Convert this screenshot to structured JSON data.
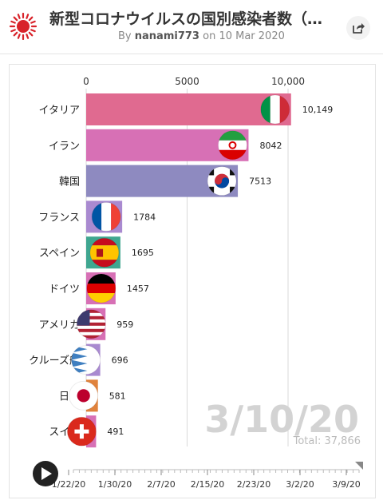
{
  "header": {
    "title": "新型コロナウイルスの国別感染者数（中…",
    "byline_prefix": "By",
    "author": "nanami773",
    "byline_on": "on",
    "date": "10 Mar 2020"
  },
  "icons": {
    "logo": "red-sun-logo-icon",
    "share": "share-icon",
    "play": "play-icon"
  },
  "colors": {
    "accent_red": "#d8232a",
    "italy_bar": "#e06a90",
    "iran_bar": "#d770b5",
    "korea_bar": "#8e8ac0",
    "purple_bar": "#a98ad0",
    "grid": "#d9d9d9",
    "date_watermark": "#d3d3d3"
  },
  "chart_data": {
    "type": "bar",
    "orientation": "horizontal",
    "categories": [
      "イタリア",
      "イラン",
      "韓国",
      "フランス",
      "スペイン",
      "ドイツ",
      "アメリカ",
      "クルーズ船",
      "日本",
      "スイス"
    ],
    "values": [
      10149,
      8042,
      7513,
      1784,
      1695,
      1457,
      959,
      696,
      581,
      491
    ],
    "value_labels": [
      "10,149",
      "8042",
      "7513",
      "1784",
      "1695",
      "1457",
      "959",
      "696",
      "581",
      "491"
    ],
    "bar_colors": [
      "#e06a90",
      "#d770b5",
      "#8e8ac0",
      "#a98ad0",
      "#3fa690",
      "#d770b5",
      "#d770b5",
      "#a98ad0",
      "#e0823c",
      "#d770b5"
    ],
    "flags": [
      "italy-flag-icon",
      "iran-flag-icon",
      "south-korea-flag-icon",
      "france-flag-icon",
      "spain-flag-icon",
      "germany-flag-icon",
      "usa-flag-icon",
      "cruise-ship-icon",
      "japan-flag-icon",
      "switzerland-flag-icon"
    ],
    "xlim": [
      0,
      10200
    ],
    "xticks": [
      0,
      5000,
      10000
    ],
    "xtick_labels": [
      "0",
      "5000",
      "10,000"
    ],
    "grid": true,
    "current_date": "3/10/20",
    "total_label": "Total: 37,866",
    "timeline": {
      "tick_labels": [
        "1/22/20",
        "1/30/20",
        "2/7/20",
        "2/15/20",
        "2/23/20",
        "3/2/20",
        "3/9/20"
      ],
      "progress": 1.0
    }
  }
}
